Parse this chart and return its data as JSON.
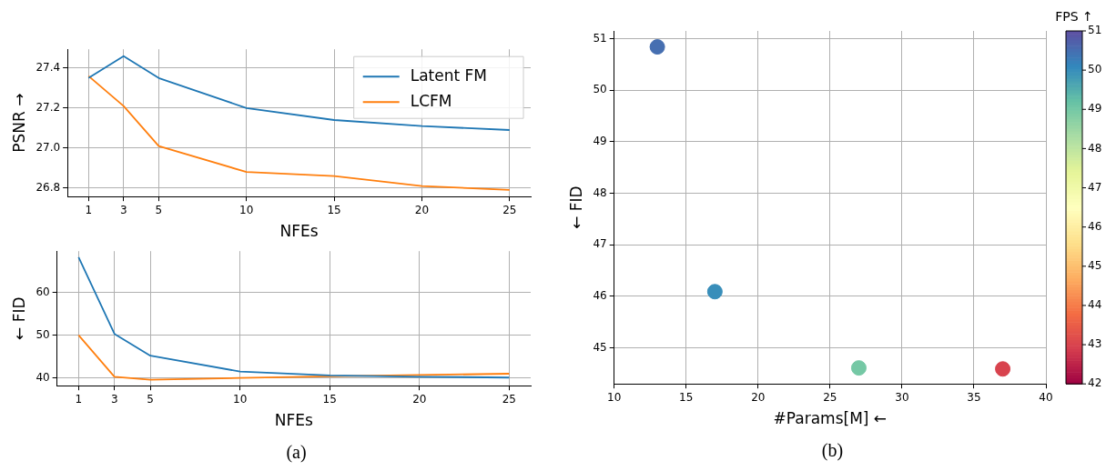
{
  "chart_data": [
    {
      "type": "line",
      "x": [
        1,
        3,
        5,
        10,
        15,
        20,
        25
      ],
      "xlabel": "NFEs",
      "ylabel": "PSNR →",
      "xlim": [
        -0.2,
        26.2
      ],
      "xticks": [
        1,
        3,
        5,
        10,
        15,
        20,
        25
      ],
      "ylim": [
        26.757,
        27.494
      ],
      "yticks": [
        {
          "value": 26.8,
          "label": "26.8"
        },
        {
          "value": 27.0,
          "label": "27.0"
        },
        {
          "value": 27.2,
          "label": "27.2"
        },
        {
          "value": 27.4,
          "label": "27.4"
        }
      ],
      "grid": true,
      "legend": "top right",
      "marker": "none",
      "line_style": "solid",
      "series": [
        {
          "name": "Latent FM",
          "color": "#1f77b4",
          "values": [
            27.35,
            27.46,
            27.35,
            27.2,
            27.14,
            27.11,
            27.09
          ]
        },
        {
          "name": "LCFM",
          "color": "#ff7f0e",
          "values": [
            27.36,
            27.21,
            27.01,
            26.88,
            26.86,
            26.81,
            26.79
          ]
        }
      ]
    },
    {
      "type": "line",
      "x": [
        1,
        3,
        5,
        10,
        15,
        20,
        25
      ],
      "xlabel": "NFEs",
      "ylabel": "← FID",
      "xlim": [
        -0.2,
        26.2
      ],
      "xticks": [
        1,
        3,
        5,
        10,
        15,
        20,
        25
      ],
      "ylim": [
        38.2,
        69.6
      ],
      "yticks": [
        40,
        50,
        60
      ],
      "grid": true,
      "marker": "none",
      "line_style": "solid",
      "annotations": [
        "(a)"
      ],
      "series": [
        {
          "color": "#1f77b4",
          "values": [
            68.2,
            50.3,
            45.2,
            41.5,
            40.6,
            40.3,
            40.1
          ]
        },
        {
          "color": "#ff7f0e",
          "values": [
            50.0,
            40.3,
            39.6,
            40.0,
            40.4,
            40.7,
            41.0
          ]
        }
      ]
    },
    {
      "type": "scatter",
      "x": [
        13,
        17,
        27,
        37
      ],
      "values": [
        50.84,
        46.09,
        44.61,
        44.59
      ],
      "cvalues": [
        50.5,
        50.0,
        49.0,
        43.0
      ],
      "xlabel": "#Params[M] ←",
      "ylabel": "← FID",
      "clabel": "FPS ↑",
      "clim": [
        42,
        51
      ],
      "cticks": [
        42,
        43,
        44,
        45,
        46,
        47,
        48,
        49,
        50,
        51
      ],
      "xlim": [
        10,
        40
      ],
      "xticks": [
        10,
        15,
        20,
        25,
        30,
        35,
        40
      ],
      "ylim": [
        44.3,
        51.15
      ],
      "yticks": [
        45,
        46,
        47,
        48,
        49,
        50,
        51
      ],
      "grid": true,
      "marker": "circle",
      "annotations": [
        "(b)"
      ]
    }
  ]
}
